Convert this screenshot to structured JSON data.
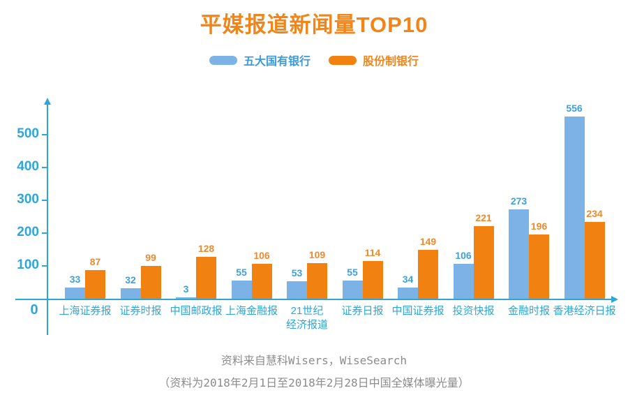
{
  "title": "平媒报道新闻量TOP10",
  "footer": {
    "source_line": "资料来自慧科Wisers，WiseSearch",
    "note_line": "（资料为2018年2月1日至2018年2月28日中国全媒体曝光量）"
  },
  "colors": {
    "title_orange": "#F0861A",
    "bar_blue": "#7DB2E6",
    "bar_orange": "#F18211",
    "axis_cyan": "#2EA7D6",
    "value_blue": "#3FA0D8",
    "value_orange": "#EE8A2E",
    "legend_blue_text": "#3E9AD5",
    "legend_orange_text": "#F0861A",
    "category_cyan": "#2EA7D6",
    "footer_gray": "#8C8C8C"
  },
  "chart_data": {
    "type": "bar",
    "title": "平媒报道新闻量TOP10",
    "categories": [
      "上海证券报",
      "证券时报",
      "中国邮政报",
      "上海金融报",
      "21世纪经济报道",
      "证券日报",
      "中国证券报",
      "投资快报",
      "金融时报",
      "香港经济日报"
    ],
    "categories_wrapped": [
      [
        "上海证券报"
      ],
      [
        "证券时报"
      ],
      [
        "中国邮政报"
      ],
      [
        "上海金融报"
      ],
      [
        "21世纪",
        "经济报道"
      ],
      [
        "证券日报"
      ],
      [
        "中国证券报"
      ],
      [
        "投资快报"
      ],
      [
        "金融时报"
      ],
      [
        "香港经济日报"
      ]
    ],
    "series": [
      {
        "name": "五大国有银行",
        "values": [
          33,
          32,
          3,
          55,
          53,
          55,
          34,
          106,
          273,
          556
        ]
      },
      {
        "name": "股份制银行",
        "values": [
          87,
          99,
          128,
          106,
          109,
          114,
          149,
          221,
          196,
          234
        ]
      }
    ],
    "y_ticks": [
      0,
      100,
      200,
      300,
      400,
      500
    ],
    "ylim": [
      0,
      570
    ],
    "xlabel": "",
    "ylabel": "",
    "grid": false,
    "legend_position": "top"
  }
}
